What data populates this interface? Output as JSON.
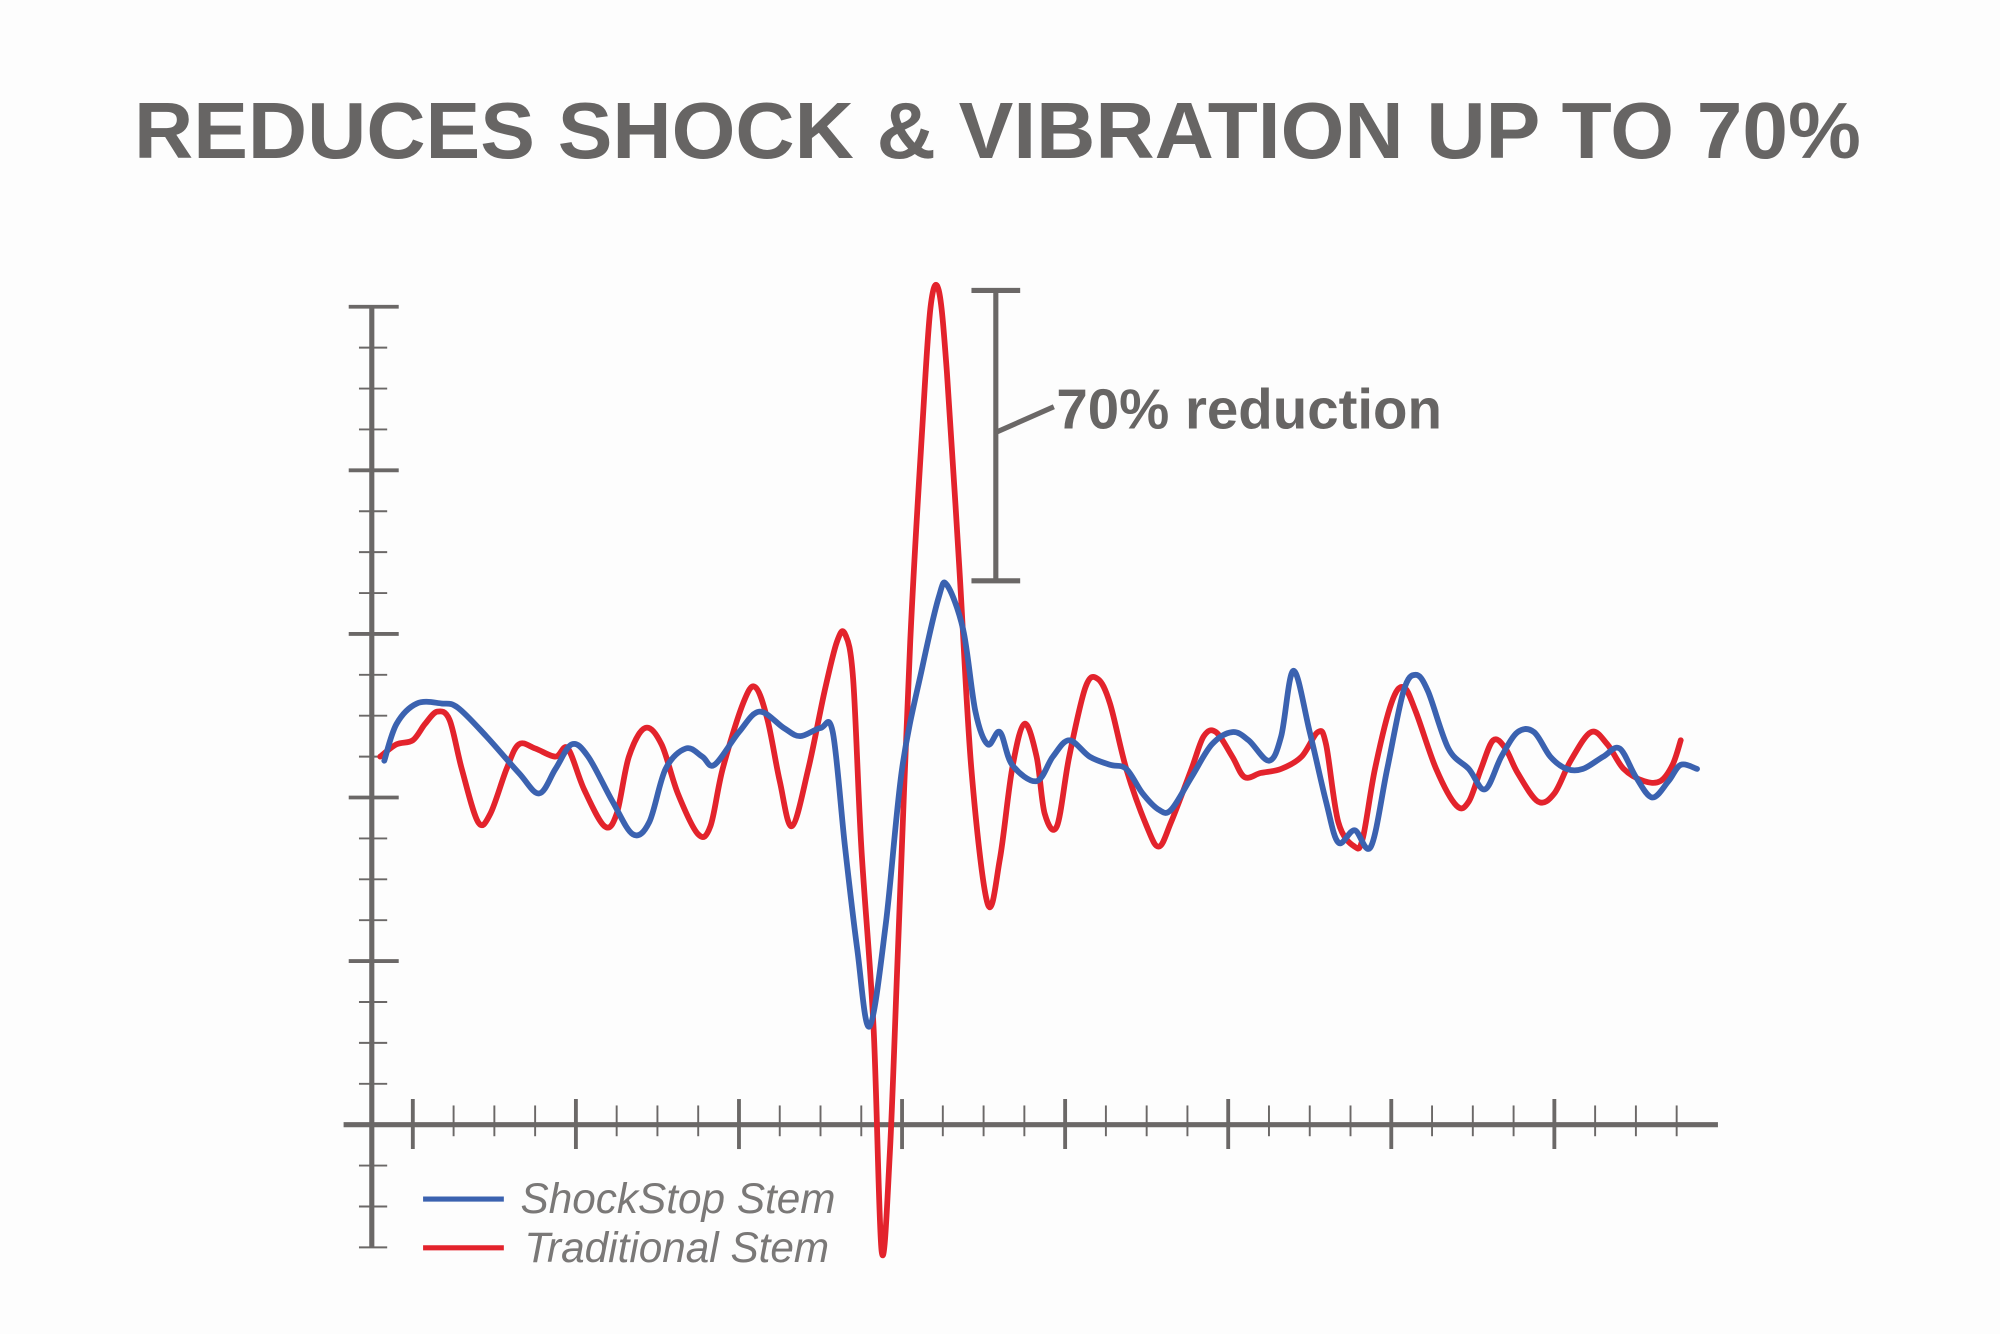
{
  "chart_data": {
    "type": "line",
    "title": "REDUCES SHOCK & VIBRATION UP TO 70%",
    "xlabel": "",
    "ylabel": "",
    "xlim": [
      -1.5,
      32.5
    ],
    "ylim": [
      -3,
      20
    ],
    "x_minor_tick_step": 1,
    "x_major_tick_step": 4,
    "y_minor_tick_step": 1,
    "y_major_tick_step": 4,
    "grid": false,
    "legend_position": "bottom-left",
    "colors": {
      "axis": "#6b6867",
      "shockstop": "#3b62b0",
      "traditional": "#e3232c",
      "text": "#676564"
    },
    "annotation": {
      "text": "70% reduction",
      "bracket_x": 14.3,
      "bracket_y": [
        13.3,
        20.4
      ]
    },
    "series": [
      {
        "name": "ShockStop Stem",
        "color": "#3b62b0",
        "points": [
          [
            -0.7,
            8.9
          ],
          [
            -0.4,
            9.8
          ],
          [
            0.1,
            10.3
          ],
          [
            0.7,
            10.3
          ],
          [
            1.1,
            10.2
          ],
          [
            1.8,
            9.5
          ],
          [
            2.6,
            8.6
          ],
          [
            3.1,
            8.1
          ],
          [
            3.5,
            8.7
          ],
          [
            3.9,
            9.3
          ],
          [
            4.3,
            9.0
          ],
          [
            4.9,
            7.9
          ],
          [
            5.4,
            7.1
          ],
          [
            5.8,
            7.4
          ],
          [
            6.2,
            8.7
          ],
          [
            6.7,
            9.2
          ],
          [
            7.1,
            9.0
          ],
          [
            7.4,
            8.8
          ],
          [
            8.0,
            9.6
          ],
          [
            8.5,
            10.1
          ],
          [
            9.1,
            9.7
          ],
          [
            9.5,
            9.5
          ],
          [
            10.0,
            9.7
          ],
          [
            10.3,
            9.6
          ],
          [
            10.6,
            6.8
          ],
          [
            10.9,
            4.3
          ],
          [
            11.2,
            2.4
          ],
          [
            11.6,
            4.9
          ],
          [
            12.0,
            8.7
          ],
          [
            12.5,
            11.2
          ],
          [
            12.9,
            12.9
          ],
          [
            13.1,
            13.2
          ],
          [
            13.5,
            12.1
          ],
          [
            13.8,
            10.1
          ],
          [
            14.1,
            9.3
          ],
          [
            14.4,
            9.6
          ],
          [
            14.7,
            8.8
          ],
          [
            15.3,
            8.4
          ],
          [
            15.7,
            9.0
          ],
          [
            16.1,
            9.4
          ],
          [
            16.6,
            9.0
          ],
          [
            17.1,
            8.8
          ],
          [
            17.5,
            8.7
          ],
          [
            17.9,
            8.1
          ],
          [
            18.3,
            7.7
          ],
          [
            18.6,
            7.7
          ],
          [
            19.1,
            8.5
          ],
          [
            19.6,
            9.3
          ],
          [
            20.1,
            9.6
          ],
          [
            20.5,
            9.4
          ],
          [
            21.0,
            8.9
          ],
          [
            21.3,
            9.5
          ],
          [
            21.6,
            11.1
          ],
          [
            22.0,
            9.6
          ],
          [
            22.4,
            7.9
          ],
          [
            22.7,
            6.9
          ],
          [
            23.1,
            7.2
          ],
          [
            23.5,
            6.8
          ],
          [
            23.9,
            8.7
          ],
          [
            24.3,
            10.6
          ],
          [
            24.6,
            11.0
          ],
          [
            24.9,
            10.6
          ],
          [
            25.4,
            9.2
          ],
          [
            25.9,
            8.7
          ],
          [
            26.3,
            8.2
          ],
          [
            26.7,
            9.0
          ],
          [
            27.1,
            9.6
          ],
          [
            27.5,
            9.6
          ],
          [
            27.9,
            9.0
          ],
          [
            28.3,
            8.7
          ],
          [
            28.7,
            8.7
          ],
          [
            29.2,
            9.0
          ],
          [
            29.6,
            9.2
          ],
          [
            30.0,
            8.5
          ],
          [
            30.4,
            8.0
          ],
          [
            30.8,
            8.4
          ],
          [
            31.1,
            8.8
          ],
          [
            31.5,
            8.7
          ]
        ]
      },
      {
        "name": "Traditional Stem",
        "color": "#e3232c",
        "points": [
          [
            -0.8,
            9.0
          ],
          [
            -0.4,
            9.3
          ],
          [
            0,
            9.4
          ],
          [
            0.3,
            9.8
          ],
          [
            0.6,
            10.1
          ],
          [
            0.9,
            9.9
          ],
          [
            1.2,
            8.7
          ],
          [
            1.6,
            7.4
          ],
          [
            1.9,
            7.6
          ],
          [
            2.3,
            8.7
          ],
          [
            2.6,
            9.3
          ],
          [
            3.0,
            9.2
          ],
          [
            3.5,
            9.0
          ],
          [
            3.8,
            9.2
          ],
          [
            4.2,
            8.2
          ],
          [
            4.7,
            7.3
          ],
          [
            5.0,
            7.6
          ],
          [
            5.3,
            9.0
          ],
          [
            5.7,
            9.7
          ],
          [
            6.1,
            9.3
          ],
          [
            6.5,
            8.1
          ],
          [
            7.0,
            7.1
          ],
          [
            7.3,
            7.3
          ],
          [
            7.6,
            8.7
          ],
          [
            8.1,
            10.3
          ],
          [
            8.4,
            10.7
          ],
          [
            8.7,
            9.9
          ],
          [
            9.0,
            8.4
          ],
          [
            9.3,
            7.3
          ],
          [
            9.7,
            8.7
          ],
          [
            10.1,
            10.6
          ],
          [
            10.4,
            11.8
          ],
          [
            10.6,
            12.0
          ],
          [
            10.8,
            10.9
          ],
          [
            11.0,
            6.8
          ],
          [
            11.3,
            2.4
          ],
          [
            11.5,
            -3.1
          ],
          [
            11.7,
            -0.7
          ],
          [
            11.9,
            4.3
          ],
          [
            12.2,
            11.8
          ],
          [
            12.5,
            17.1
          ],
          [
            12.7,
            20.0
          ],
          [
            12.9,
            20.4
          ],
          [
            13.1,
            18.4
          ],
          [
            13.4,
            13.7
          ],
          [
            13.7,
            8.7
          ],
          [
            14.1,
            5.4
          ],
          [
            14.4,
            6.5
          ],
          [
            14.7,
            8.7
          ],
          [
            15.0,
            9.8
          ],
          [
            15.3,
            9.0
          ],
          [
            15.5,
            7.6
          ],
          [
            15.8,
            7.3
          ],
          [
            16.1,
            9.0
          ],
          [
            16.5,
            10.7
          ],
          [
            16.8,
            10.9
          ],
          [
            17.1,
            10.3
          ],
          [
            17.5,
            8.7
          ],
          [
            18.0,
            7.3
          ],
          [
            18.3,
            6.8
          ],
          [
            18.6,
            7.4
          ],
          [
            19.1,
            8.7
          ],
          [
            19.4,
            9.5
          ],
          [
            19.7,
            9.6
          ],
          [
            20.1,
            9.0
          ],
          [
            20.4,
            8.5
          ],
          [
            20.8,
            8.6
          ],
          [
            21.3,
            8.7
          ],
          [
            21.8,
            9.0
          ],
          [
            22.2,
            9.6
          ],
          [
            22.4,
            9.3
          ],
          [
            22.7,
            7.4
          ],
          [
            23.1,
            6.8
          ],
          [
            23.3,
            7.0
          ],
          [
            23.6,
            8.7
          ],
          [
            24.0,
            10.3
          ],
          [
            24.3,
            10.7
          ],
          [
            24.6,
            10.1
          ],
          [
            25.1,
            8.7
          ],
          [
            25.6,
            7.8
          ],
          [
            25.9,
            7.9
          ],
          [
            26.2,
            8.7
          ],
          [
            26.5,
            9.4
          ],
          [
            26.8,
            9.2
          ],
          [
            27.1,
            8.6
          ],
          [
            27.6,
            7.9
          ],
          [
            28.0,
            8.1
          ],
          [
            28.4,
            8.9
          ],
          [
            28.9,
            9.6
          ],
          [
            29.3,
            9.3
          ],
          [
            29.7,
            8.7
          ],
          [
            30.2,
            8.4
          ],
          [
            30.6,
            8.4
          ],
          [
            30.9,
            8.8
          ],
          [
            31.1,
            9.4
          ]
        ]
      }
    ]
  }
}
